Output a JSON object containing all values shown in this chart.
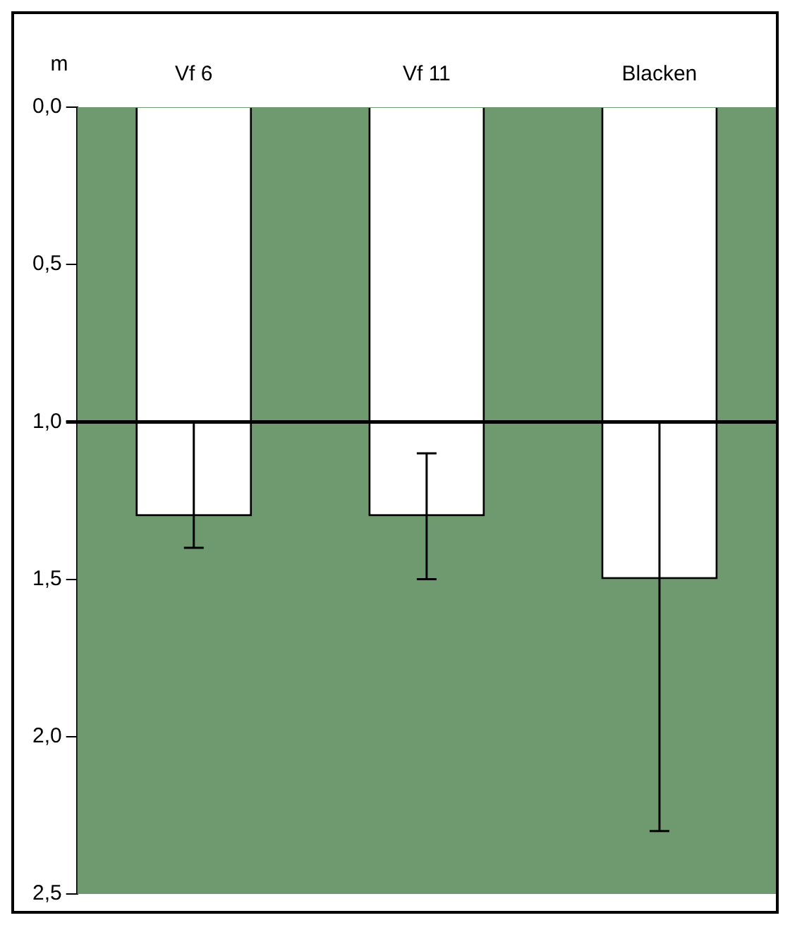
{
  "chart_data": {
    "type": "bar",
    "ylabel": "m",
    "categories": [
      "Vf 6",
      "Vf 11",
      "Blacken"
    ],
    "values": [
      1.3,
      1.3,
      1.5
    ],
    "errors": [
      [
        1.0,
        1.4
      ],
      0.2,
      [
        1.0,
        2.3
      ]
    ],
    "color": "#ffffff",
    "ylim": [
      2.5,
      0
    ],
    "yticks": [
      {
        "value": 0,
        "label": "0,0"
      },
      {
        "value": 0.5,
        "label": "0,5"
      },
      {
        "value": 1,
        "label": "1,0"
      },
      {
        "value": 1.5,
        "label": "1,5"
      },
      {
        "value": 2,
        "label": "2,0"
      },
      {
        "value": 2.5,
        "label": "2,5"
      }
    ],
    "ref_lines": [
      {
        "axis": "y",
        "value": 1,
        "color": "#000000"
      }
    ],
    "grid": false,
    "legend": false
  }
}
